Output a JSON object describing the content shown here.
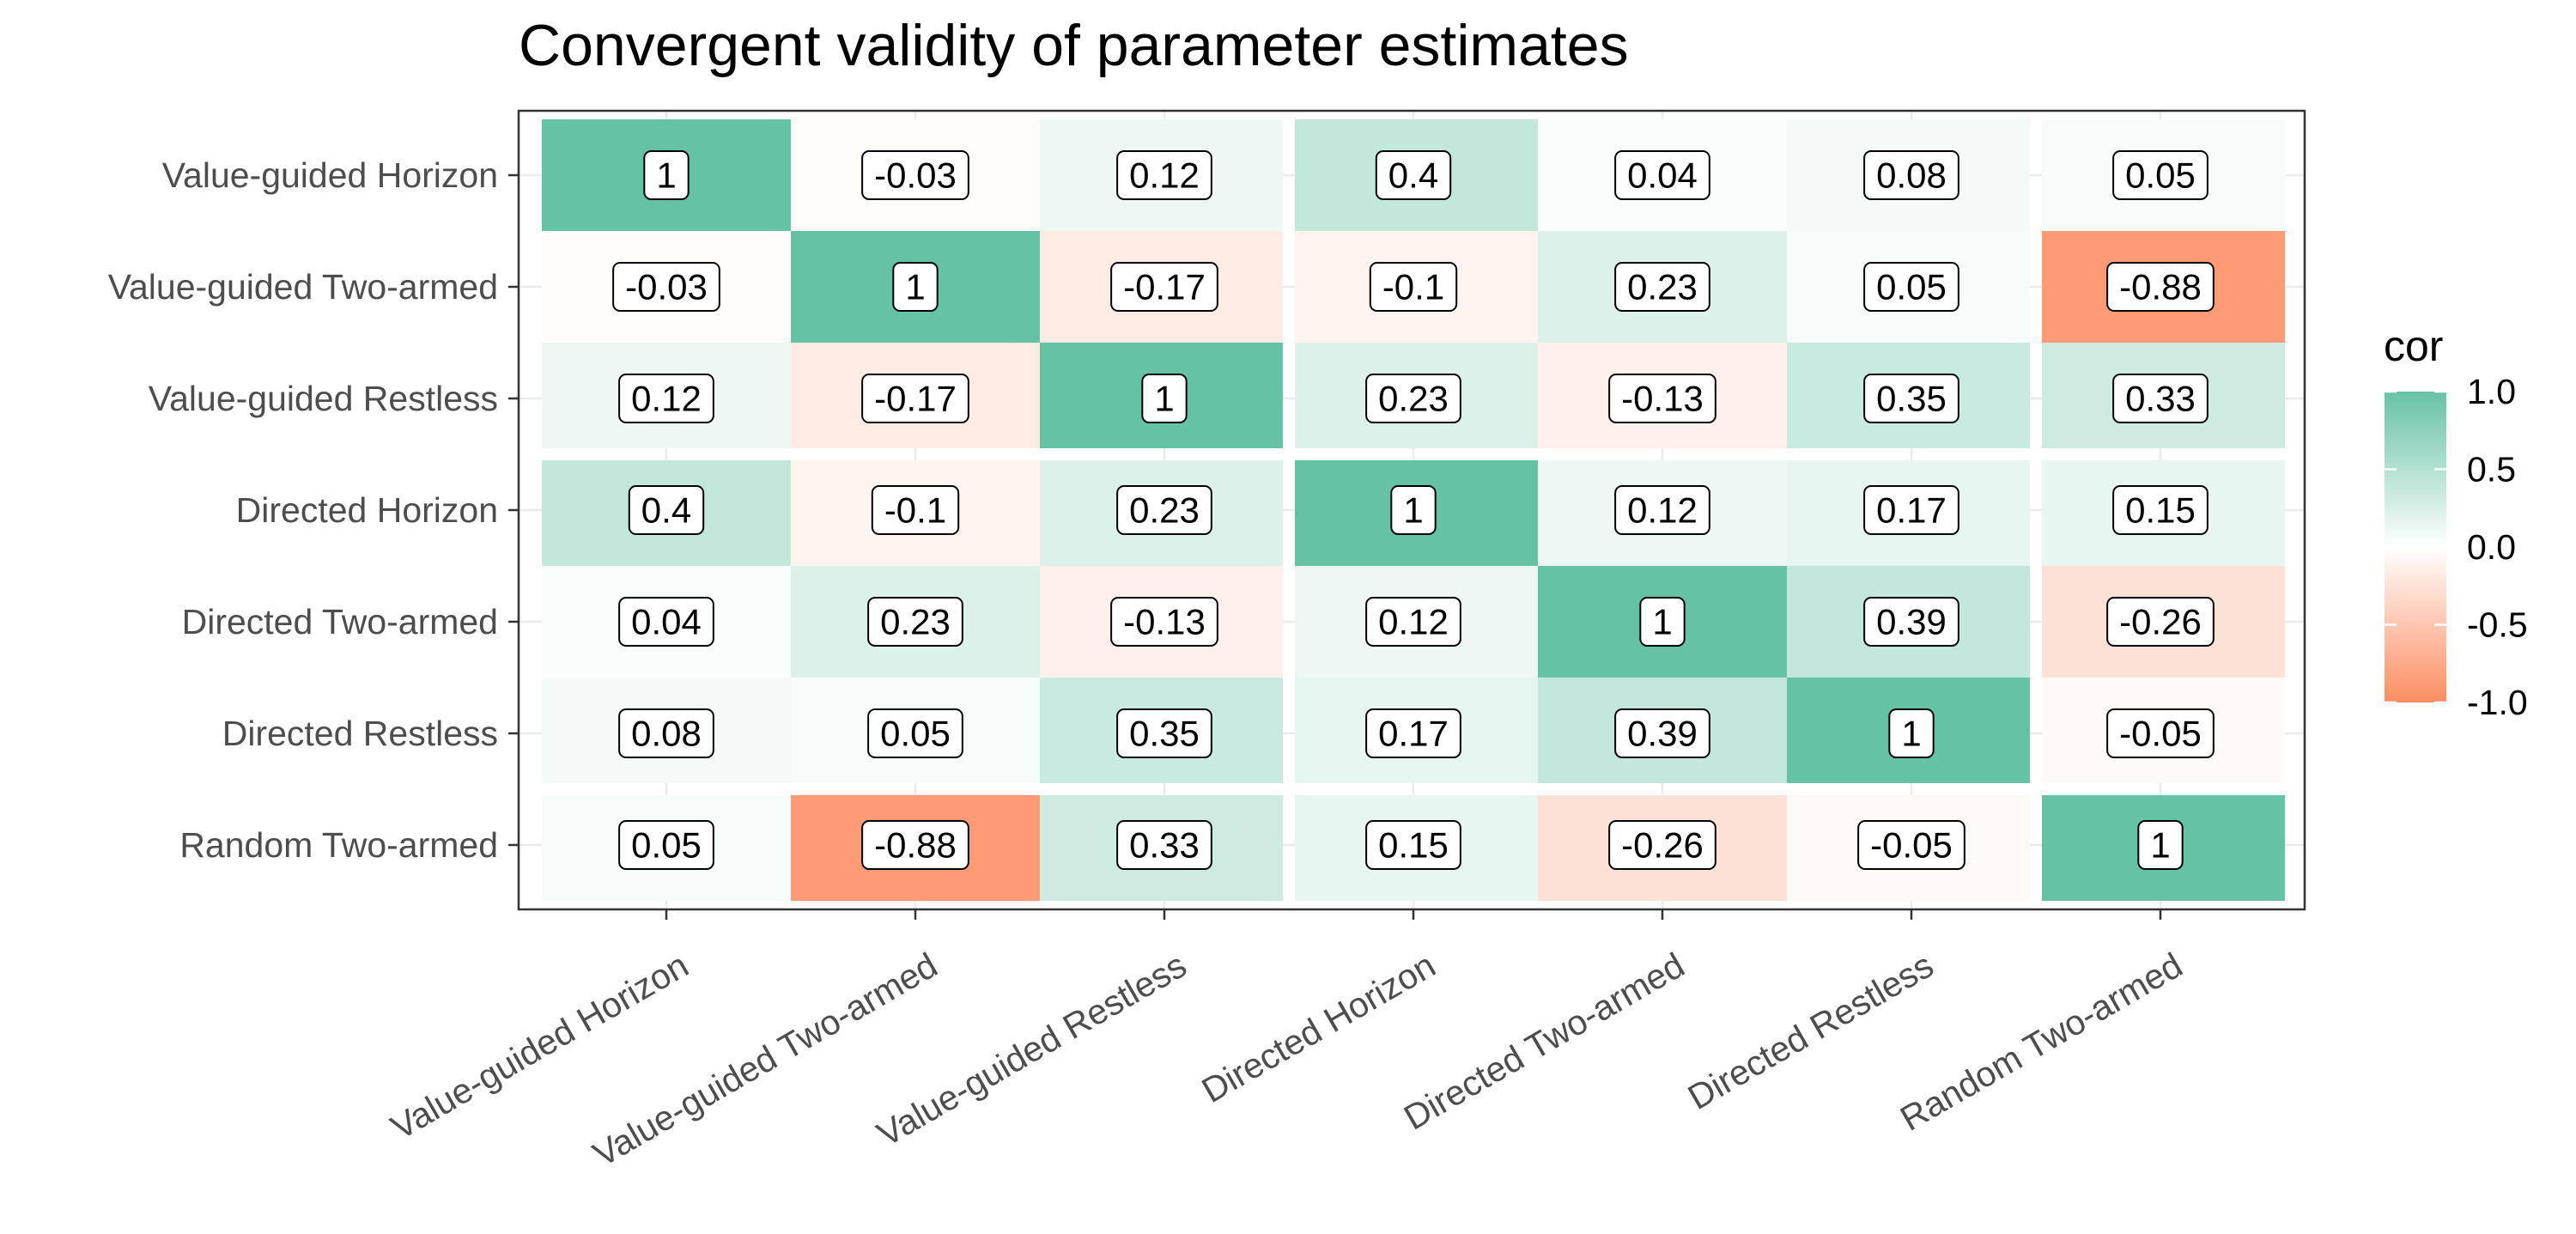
{
  "chart_data": {
    "type": "heatmap",
    "title": "Convergent validity of parameter estimates",
    "xlabel": "",
    "ylabel": "",
    "variables": [
      "Value-guided Horizon",
      "Value-guided Two-armed",
      "Value-guided Restless",
      "Directed Horizon",
      "Directed Two-armed",
      "Directed Restless",
      "Random Two-armed"
    ],
    "matrix": [
      [
        1,
        -0.03,
        0.12,
        0.4,
        0.04,
        0.08,
        0.05
      ],
      [
        -0.03,
        1,
        -0.17,
        -0.1,
        0.23,
        0.05,
        -0.88
      ],
      [
        0.12,
        -0.17,
        1,
        0.23,
        -0.13,
        0.35,
        0.33
      ],
      [
        0.4,
        -0.1,
        0.23,
        1,
        0.12,
        0.17,
        0.15
      ],
      [
        0.04,
        0.23,
        -0.13,
        0.12,
        1,
        0.39,
        -0.26
      ],
      [
        0.08,
        0.05,
        0.35,
        0.17,
        0.39,
        1,
        -0.05
      ],
      [
        0.05,
        -0.88,
        0.33,
        0.15,
        -0.26,
        -0.05,
        1
      ]
    ],
    "legend": {
      "title": "cor",
      "ticks": [
        "1.0",
        "0.5",
        "0.0",
        "-0.5",
        "-1.0"
      ],
      "tick_values": [
        1,
        0.5,
        0,
        -0.5,
        -1
      ],
      "range": [
        -1,
        1
      ],
      "placement": "right"
    },
    "colors": {
      "high": "#66c2a5",
      "mid": "#ffffff",
      "low": "#fc8d62",
      "panel_border": "#333333",
      "grid": "#ebebeb"
    },
    "group_boundaries_after": [
      2,
      5
    ]
  }
}
